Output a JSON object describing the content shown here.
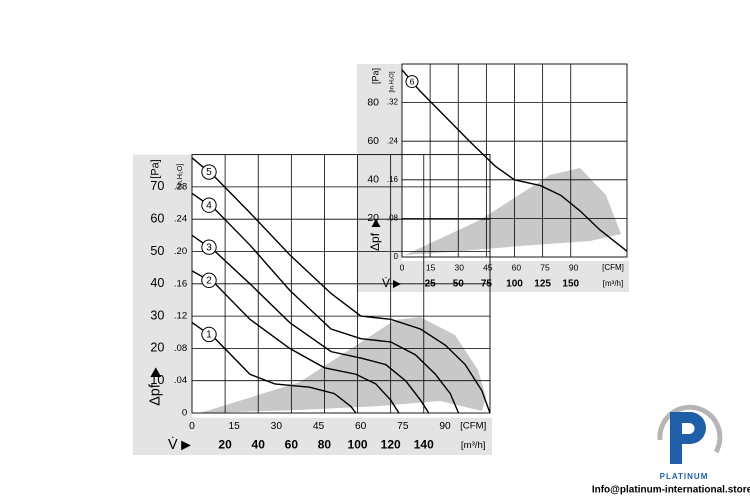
{
  "chart_data": [
    {
      "type": "line",
      "x_axis_title": "V̇",
      "x_label": "[m³/h]",
      "x2_label": "[CFM]",
      "y_axis_title": "Δpf",
      "y_label": "[Pa]",
      "y2_label": "[in.H₂O]",
      "xlim": [
        0,
        180
      ],
      "xticks": [
        20,
        40,
        60,
        80,
        100,
        120,
        140
      ],
      "x2lim": [
        0,
        106
      ],
      "x2ticks": [
        0,
        15,
        30,
        45,
        60,
        75,
        90
      ],
      "ylim": [
        0,
        80
      ],
      "yticks": [
        10,
        20,
        30,
        40,
        50,
        60,
        70
      ],
      "y2lim": [
        0,
        0.32
      ],
      "y2ticks": [
        0,
        {
          "value": 0.04,
          "label": ".04"
        },
        {
          "value": 0.08,
          "label": ".08"
        },
        {
          "value": 0.12,
          "label": ".12"
        },
        {
          "value": 0.16,
          "label": ".16"
        },
        {
          "value": 0.2,
          "label": ".20"
        },
        {
          "value": 0.24,
          "label": ".24"
        },
        {
          "value": 0.28,
          "label": ".28"
        }
      ],
      "grid": true,
      "series": [
        {
          "name": "1",
          "color": "#000000",
          "x": [
            0,
            14,
            35,
            50,
            71,
            86,
            96,
            99
          ],
          "values": [
            28,
            23,
            12,
            9,
            8,
            6,
            2,
            0
          ]
        },
        {
          "name": "2",
          "color": "#000000",
          "x": [
            0,
            14,
            35,
            59,
            80,
            99,
            111,
            120,
            125
          ],
          "values": [
            44,
            40,
            29,
            20,
            14,
            12,
            9,
            4,
            0
          ]
        },
        {
          "name": "3",
          "color": "#000000",
          "x": [
            0,
            14,
            35,
            59,
            84,
            102,
            117,
            129,
            138,
            143
          ],
          "values": [
            55,
            50,
            40,
            28,
            19,
            17,
            15,
            10,
            4,
            0
          ]
        },
        {
          "name": "4",
          "color": "#000000",
          "x": [
            0,
            14,
            35,
            59,
            84,
            102,
            120,
            135,
            147,
            156,
            161
          ],
          "values": [
            68,
            63,
            52,
            38,
            26,
            23,
            22,
            18,
            12,
            6,
            0
          ]
        },
        {
          "name": "5",
          "color": "#000000",
          "x": [
            0,
            14,
            35,
            59,
            84,
            102,
            120,
            138,
            153,
            165,
            175,
            180
          ],
          "values": [
            79,
            73,
            62,
            49,
            37,
            30,
            29,
            26,
            21,
            15,
            7,
            0
          ]
        }
      ]
    },
    {
      "type": "line",
      "x_axis_title": "V̇",
      "x_label": "[m³/h]",
      "x2_label": "[CFM]",
      "y_axis_title": "Δpf",
      "y_label": "[Pa]",
      "y2_label": "[in.H₂O]",
      "xlim": [
        0,
        200
      ],
      "xticks": [
        25,
        50,
        75,
        100,
        125,
        150
      ],
      "x2lim": [
        0,
        118
      ],
      "x2ticks": [
        0,
        15,
        30,
        45,
        60,
        75,
        90
      ],
      "ylim": [
        0,
        100
      ],
      "yticks": [
        20,
        40,
        60,
        80
      ],
      "y2lim": [
        0,
        0.4
      ],
      "y2ticks": [
        0,
        {
          "value": 0.08,
          "label": ".08"
        },
        {
          "value": 0.16,
          "label": ".16"
        },
        {
          "value": 0.24,
          "label": ".24"
        },
        {
          "value": 0.32,
          "label": ".32"
        }
      ],
      "grid": true,
      "series": [
        {
          "name": "6",
          "color": "#000000",
          "x": [
            0,
            16,
            38,
            60,
            83,
            100,
            123,
            141,
            158,
            176,
            200
          ],
          "values": [
            97,
            86,
            73,
            60,
            47,
            40,
            37,
            32,
            24,
            14,
            3
          ]
        }
      ]
    }
  ],
  "logo": {
    "brand": "PLATINUM",
    "contact": "Info@platinum-international.store"
  }
}
